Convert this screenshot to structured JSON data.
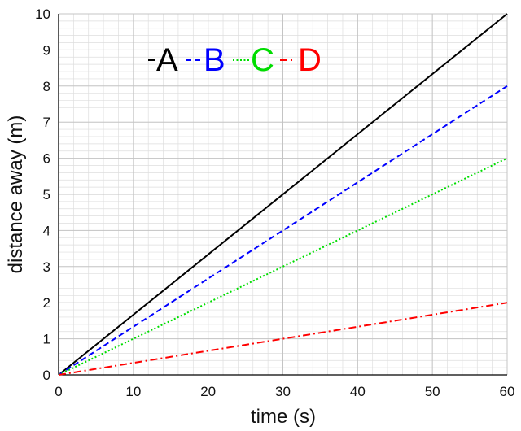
{
  "chart_data": {
    "type": "line",
    "xlabel": "time (s)",
    "ylabel": "distance away (m)",
    "xlim": [
      0,
      60
    ],
    "ylim": [
      0,
      10
    ],
    "xticks": [
      0,
      10,
      20,
      30,
      40,
      50,
      60
    ],
    "yticks": [
      0,
      1,
      2,
      3,
      4,
      5,
      6,
      7,
      8,
      9,
      10
    ],
    "grid": true,
    "legend_position": "top-left",
    "series": [
      {
        "name": "A",
        "color": "#000000",
        "style": "solid",
        "x": [
          0,
          60
        ],
        "y": [
          0,
          10
        ]
      },
      {
        "name": "B",
        "color": "#0000ff",
        "style": "dashed",
        "x": [
          0,
          60
        ],
        "y": [
          0,
          8
        ]
      },
      {
        "name": "C",
        "color": "#00dd00",
        "style": "dotted",
        "x": [
          0,
          60
        ],
        "y": [
          0,
          6
        ]
      },
      {
        "name": "D",
        "color": "#ff0000",
        "style": "dashdot",
        "x": [
          0,
          60
        ],
        "y": [
          0,
          2
        ]
      }
    ]
  }
}
